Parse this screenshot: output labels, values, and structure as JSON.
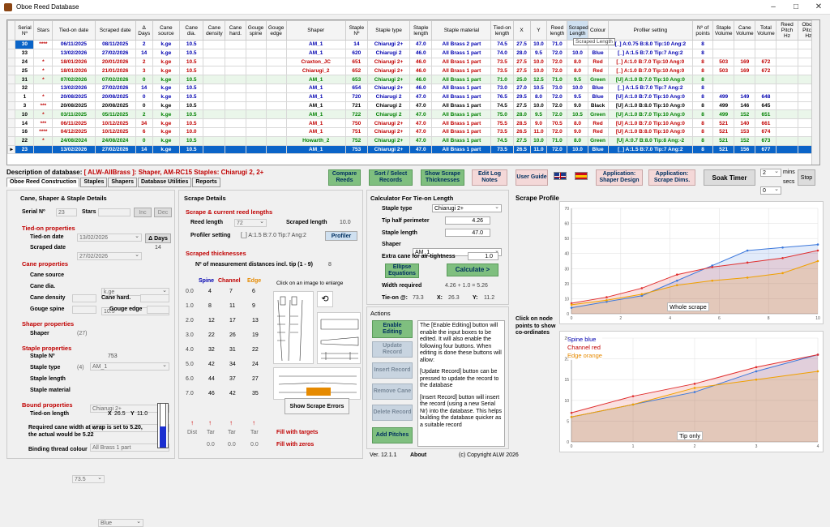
{
  "window": {
    "title": "Oboe Reed Database"
  },
  "grid": {
    "columns": [
      "Serial Nº",
      "Stars",
      "Tied-on date",
      "Scraped date",
      "Δ Days",
      "Cane source",
      "Cane dia.",
      "Cane density",
      "Cane hard.",
      "Gouge spine",
      "Gouge edge",
      "Shaper",
      "Staple Nº",
      "Staple type",
      "Staple length",
      "Staple material",
      "Tied-on length",
      "X",
      "Y",
      "Reed length",
      "Scraped Length",
      "Colour",
      "Profiler setting",
      "Nº of points",
      "Staple Volume",
      "Cane Volume",
      "Total Volume",
      "Reed Pitch Hz",
      "Oboe Pitch Hz"
    ],
    "rows": [
      [
        "30",
        "****",
        "06/11/2025",
        "08/11/2025",
        "2",
        "k.ge",
        "10.5",
        "",
        "",
        "",
        "",
        "AM_1",
        "14",
        "Chiarugi 2+",
        "47.0",
        "All Brass 2 part",
        "74.5",
        "27.5",
        "10.0",
        "71.0",
        "",
        "",
        "[_] A:0.75 B:8.0 Tip:10 Ang:2",
        "8",
        "",
        "",
        "",
        "",
        ""
      ],
      [
        "33",
        "",
        "13/02/2026",
        "27/02/2026",
        "14",
        "k.ge",
        "10.5",
        "",
        "",
        "",
        "",
        "AM_1",
        "620",
        "Chiarugi 2",
        "46.0",
        "All Brass 1 part",
        "74.0",
        "28.0",
        "9.5",
        "72.0",
        "10.0",
        "Blue",
        "[_] A:1.5 B:7.0 Tip:7 Ang:2",
        "8",
        "",
        "",
        "",
        "",
        ""
      ],
      [
        "24",
        "*",
        "18/01/2026",
        "20/01/2026",
        "2",
        "k.ge",
        "10.5",
        "",
        "",
        "",
        "",
        "Craxton_JC",
        "651",
        "Chiarugi 2+",
        "46.0",
        "All Brass 1 part",
        "73.5",
        "27.5",
        "10.0",
        "72.0",
        "8.0",
        "Red",
        "[_] A:1.0 B:7.0 Tip:10 Ang:0",
        "8",
        "503",
        "169",
        "672",
        "",
        ""
      ],
      [
        "25",
        "*",
        "18/01/2026",
        "21/01/2026",
        "3",
        "k.ge",
        "10.5",
        "",
        "",
        "",
        "",
        "Chiarugi_2",
        "652",
        "Chiarugi 2+",
        "46.0",
        "All Brass 1 part",
        "73.5",
        "27.5",
        "10.0",
        "72.0",
        "8.0",
        "Red",
        "[_] A:1.0 B:7.0 Tip:10 Ang:0",
        "8",
        "503",
        "169",
        "672",
        "",
        ""
      ],
      [
        "31",
        "*",
        "07/02/2026",
        "07/02/2026",
        "0",
        "k.ge",
        "10.5",
        "",
        "",
        "",
        "",
        "AM_1",
        "653",
        "Chiarugi 2+",
        "46.0",
        "All Brass 1 part",
        "71.0",
        "25.0",
        "12.5",
        "71.0",
        "9.5",
        "Green",
        "[U] A:1.0 B:7.0 Tip:10 Ang:0",
        "8",
        "",
        "",
        "",
        "",
        ""
      ],
      [
        "32",
        "",
        "13/02/2026",
        "27/02/2026",
        "14",
        "k.ge",
        "10.5",
        "",
        "",
        "",
        "",
        "AM_1",
        "654",
        "Chiarugi 2+",
        "46.0",
        "All Brass 1 part",
        "73.0",
        "27.0",
        "10.5",
        "73.0",
        "10.0",
        "Blue",
        "[_] A:1.5 B:7.0 Tip:7 Ang:2",
        "8",
        "",
        "",
        "",
        "",
        ""
      ],
      [
        "1",
        "*",
        "20/08/2025",
        "20/08/2025",
        "0",
        "k.ge",
        "10.5",
        "",
        "",
        "",
        "",
        "AM_1",
        "720",
        "Chiarugi 2",
        "47.0",
        "All Brass 1 part",
        "76.5",
        "29.5",
        "8.0",
        "72.0",
        "9.5",
        "Blue",
        "[U] A:1.0 B:7.0 Tip:10 Ang:0",
        "8",
        "499",
        "149",
        "648",
        "",
        ""
      ],
      [
        "3",
        "***",
        "20/08/2025",
        "20/08/2025",
        "0",
        "k.ge",
        "10.5",
        "",
        "",
        "",
        "",
        "AM_1",
        "721",
        "Chiarugi 2",
        "47.0",
        "All Brass 1 part",
        "74.5",
        "27.5",
        "10.0",
        "72.0",
        "9.0",
        "Black",
        "[U] A:1.0 B:8.0 Tip:10 Ang:0",
        "8",
        "499",
        "146",
        "645",
        "",
        ""
      ],
      [
        "10",
        "*",
        "03/11/2025",
        "05/11/2025",
        "2",
        "k.ge",
        "10.5",
        "",
        "",
        "",
        "",
        "AM_1",
        "722",
        "Chiarugi 2",
        "47.0",
        "All Brass 1 part",
        "75.0",
        "28.0",
        "9.5",
        "72.0",
        "10.5",
        "Green",
        "[U] A:1.0 B:7.0 Tip:10 Ang:0",
        "8",
        "499",
        "152",
        "651",
        "",
        ""
      ],
      [
        "14",
        "***",
        "06/11/2025",
        "10/12/2025",
        "34",
        "k.ge",
        "10.5",
        "",
        "",
        "",
        "",
        "AM_1",
        "750",
        "Chiarugi 2+",
        "47.0",
        "All Brass 1 part",
        "75.5",
        "28.5",
        "9.0",
        "70.5",
        "8.0",
        "Red",
        "[U] A:1.0 B:7.0 Tip:10 Ang:0",
        "8",
        "521",
        "140",
        "661",
        "",
        ""
      ],
      [
        "16",
        "****",
        "04/12/2025",
        "10/12/2025",
        "6",
        "k.ge",
        "10.0",
        "",
        "",
        "",
        "",
        "AM_1",
        "751",
        "Chiarugi 2+",
        "47.0",
        "All Brass 1 part",
        "73.5",
        "26.5",
        "11.0",
        "72.0",
        "9.0",
        "Red",
        "[U] A:1.0 B:8.0 Tip:10 Ang:0",
        "8",
        "521",
        "153",
        "674",
        "",
        ""
      ],
      [
        "22",
        "*",
        "24/08/2024",
        "24/08/2024",
        "0",
        "k.ge",
        "10.5",
        "",
        "",
        "",
        "",
        "Howarth_2",
        "752",
        "Chiarugi 2+",
        "47.0",
        "All Brass 1 part",
        "74.5",
        "27.5",
        "10.0",
        "71.0",
        "8.0",
        "Green",
        "[U] A:0.7 B:8.0 Tip:8 Ang:-2",
        "8",
        "521",
        "152",
        "673",
        "",
        ""
      ],
      [
        "23",
        "",
        "13/02/2026",
        "27/02/2026",
        "14",
        "k.ge",
        "10.5",
        "",
        "",
        "",
        "",
        "AM_1",
        "753",
        "Chiarugi 2+",
        "47.0",
        "All Brass 1 part",
        "73.5",
        "26.5",
        "11.0",
        "72.0",
        "10.0",
        "Blue",
        "[_] A:1.5 B:7.0 Tip:7 Ang:2",
        "8",
        "521",
        "156",
        "677",
        "",
        ""
      ]
    ],
    "row_colors": [
      "b",
      "b",
      "r",
      "r",
      "gr",
      "b",
      "b",
      "k",
      "gr",
      "r",
      "r",
      "gr",
      "hl"
    ],
    "tooltip": "Scraped Length"
  },
  "description": {
    "label": "Description of database:",
    "value": "[ ALW-AllBrass ]: Shaper, AM-RC15 Staples: Chiarugi 2, 2+"
  },
  "tabs": [
    "Oboe Reed Construction",
    "Staples",
    "Shapers",
    "Database Utilities",
    "Reports"
  ],
  "toolbar": {
    "compare": "Compare Reeds",
    "sort": "Sort / Select Records",
    "show_scrape": "Show Scrape Thicknesses",
    "edit_log": "Edit Log Notes",
    "user_guide": "User Guide",
    "app_shaper": "Application: Shaper Design",
    "app_scrape": "Application: Scrape Dims.",
    "soak": "Soak Timer",
    "mins_val": "2",
    "mins": "mins",
    "secs_val": "0",
    "secs": "secs",
    "stop": "Stop"
  },
  "cane": {
    "title": "Cane, Shaper & Staple Details",
    "serial_lbl": "Serial Nº",
    "serial": "23",
    "stars_lbl": "Stars",
    "inc": "Inc",
    "dec": "Dec",
    "tied_title": "Tied-on properties",
    "tied_lbl": "Tied-on date",
    "tied": "13/02/2026",
    "days_btn": "Δ Days",
    "scraped_lbl": "Scraped date",
    "scraped": "27/02/2026",
    "days": "14",
    "cane_title": "Cane properties",
    "source_lbl": "Cane source",
    "source": "k.ge",
    "dia_lbl": "Cane dia.",
    "dia": "10.5",
    "density_lbl": "Cane density",
    "hard_lbl": "Cane hard.",
    "spine_lbl": "Gouge spine",
    "edge_lbl": "Gouge edge",
    "shaper_title": "Shaper properties",
    "shaper_lbl": "Shaper",
    "shaper_n": "(27)",
    "shaper": "AM_1",
    "staple_title": "Staple properties",
    "staple_no_lbl": "Staple Nº",
    "staple_no": "753",
    "stype_lbl": "Staple type",
    "stype_n": "(4)",
    "stype": "Chiarugi 2+",
    "slen_lbl": "Staple length",
    "slen": "47.0",
    "smat_lbl": "Staple material",
    "smat": "All Brass 1 part",
    "bound_title": "Bound properties",
    "tlen_lbl": "Tied-on length",
    "tlen": "73.5",
    "x_lbl": "X",
    "x": "26.5",
    "y_lbl": "Y",
    "y": "11.0",
    "note": "Required cane width at wrap is set to 5.20, the actual would be 5.22",
    "thread_lbl": "Binding thread colour",
    "thread": "Blue"
  },
  "scrape": {
    "title": "Scrape Details",
    "sub1": "Scrape & current reed lengths",
    "reed_len_lbl": "Reed length",
    "reed_len": "72",
    "scraped_len_lbl": "Scraped length",
    "scraped_len": "10.0",
    "profiler_lbl": "Profiler setting",
    "profiler": "[_] A:1.5 B:7.0 Tip:7 Ang:2",
    "profiler_btn": "Profiler",
    "sub2": "Scraped thicknesses",
    "meas_lbl": "Nº of measurement distances incl. tip (1 - 9)",
    "meas": "8",
    "enlarge": "Click on an image to enlarge",
    "h_spine": "Spine",
    "h_channel": "Channel",
    "h_edge": "Edge",
    "rows": [
      [
        "0.0",
        "4",
        "7",
        "6"
      ],
      [
        "1.0",
        "8",
        "11",
        "9"
      ],
      [
        "2.0",
        "12",
        "17",
        "13"
      ],
      [
        "3.0",
        "22",
        "26",
        "19"
      ],
      [
        "4.0",
        "32",
        "31",
        "22"
      ],
      [
        "5.0",
        "42",
        "34",
        "24"
      ],
      [
        "6.0",
        "44",
        "37",
        "27"
      ],
      [
        "7.0",
        "46",
        "42",
        "35"
      ]
    ],
    "show_errors": "Show Scrape Errors",
    "dist": "Dist",
    "tar": "Tar",
    "zero1": "0.0",
    "zero2": "0.0",
    "zero3": "0.0",
    "fill_targets": "Fill with targets",
    "fill_zeros": "Fill with zeros"
  },
  "calc": {
    "title": "Calculator For Tie-on Length",
    "stype_lbl": "Staple type",
    "stype": "Chiarugi 2+",
    "tip_lbl": "Tip half perimeter",
    "tip": "4.26",
    "slen_lbl": "Staple length",
    "slen": "47.0",
    "shaper_lbl": "Shaper",
    "shaper": "AM_1",
    "extra_lbl": "Extra cane for air-tightness",
    "extra": "1.0",
    "ellipse": "Ellipse Equations",
    "calculate": "Calculate >",
    "width_lbl": "Width required",
    "width": "4.26 + 1.0 = 5.26",
    "tieon_lbl": "Tie-on @:",
    "tieon": "73.3",
    "x_lbl": "X:",
    "x": "26.3",
    "y_lbl": "Y:",
    "y": "11.2"
  },
  "actions": {
    "title": "Actions",
    "enable": "Enable Editing",
    "update": "Update Record",
    "insert": "Insert Record",
    "remove": "Remove Cane",
    "delete": "Delete Record",
    "add_pitches": "Add Pitches",
    "p1": "The [Enable Editing] button will enable the input boxes to be edited. It will also enable the following four buttons. When editing is done these buttons will allow:",
    "p2": "[Update Record] button can be pressed to update the record to the database",
    "p3": "[Insert Record] button will insert the record (using a new Serial Nr) into the database. This helps building the database quicker as a suitable record"
  },
  "footer": {
    "version": "Ver. 12.1.1",
    "about": "About",
    "copyright": "(c) Copyright ALW 2026"
  },
  "profile": {
    "title": "Scrape Profile",
    "hint": "Click on node points to show co-ordinates",
    "chart1_label": "Whole scrape",
    "chart2_label": "Tip only"
  },
  "chart_data": [
    {
      "type": "line",
      "title": "Whole scrape",
      "x": [
        0,
        1,
        2,
        3,
        4,
        5,
        6,
        7
      ],
      "ylim": [
        0,
        70
      ],
      "y_ticks": [
        0,
        10,
        20,
        30,
        40,
        50,
        60,
        70
      ],
      "x_ticks": [
        0,
        2,
        4,
        6,
        8,
        10
      ],
      "xlim": [
        0,
        10
      ],
      "series": [
        {
          "name": "Spine",
          "color": "#3c78dc",
          "values": [
            4,
            8,
            12,
            22,
            32,
            42,
            44,
            46
          ]
        },
        {
          "name": "Channel",
          "color": "#e03030",
          "values": [
            7,
            11,
            17,
            26,
            31,
            34,
            37,
            42
          ]
        },
        {
          "name": "Edge",
          "color": "#f0a000",
          "values": [
            6,
            9,
            13,
            19,
            22,
            24,
            27,
            35
          ]
        }
      ]
    },
    {
      "type": "line",
      "title": "Tip only",
      "x": [
        0,
        1,
        2,
        3,
        4
      ],
      "ylim": [
        0,
        25
      ],
      "y_ticks": [
        0,
        5,
        10,
        15,
        20,
        25
      ],
      "x_ticks": [
        0,
        1,
        2,
        3,
        4
      ],
      "xlim": [
        0,
        4
      ],
      "series": [
        {
          "name": "Spine blue",
          "color": "#3c78dc",
          "values": [
            6,
            9,
            12,
            17,
            21
          ]
        },
        {
          "name": "Channel red",
          "color": "#e03030",
          "values": [
            7,
            11,
            14,
            18,
            21
          ]
        },
        {
          "name": "Edge orange",
          "color": "#f0a000",
          "values": [
            6,
            9,
            13,
            15,
            17
          ]
        }
      ]
    }
  ]
}
